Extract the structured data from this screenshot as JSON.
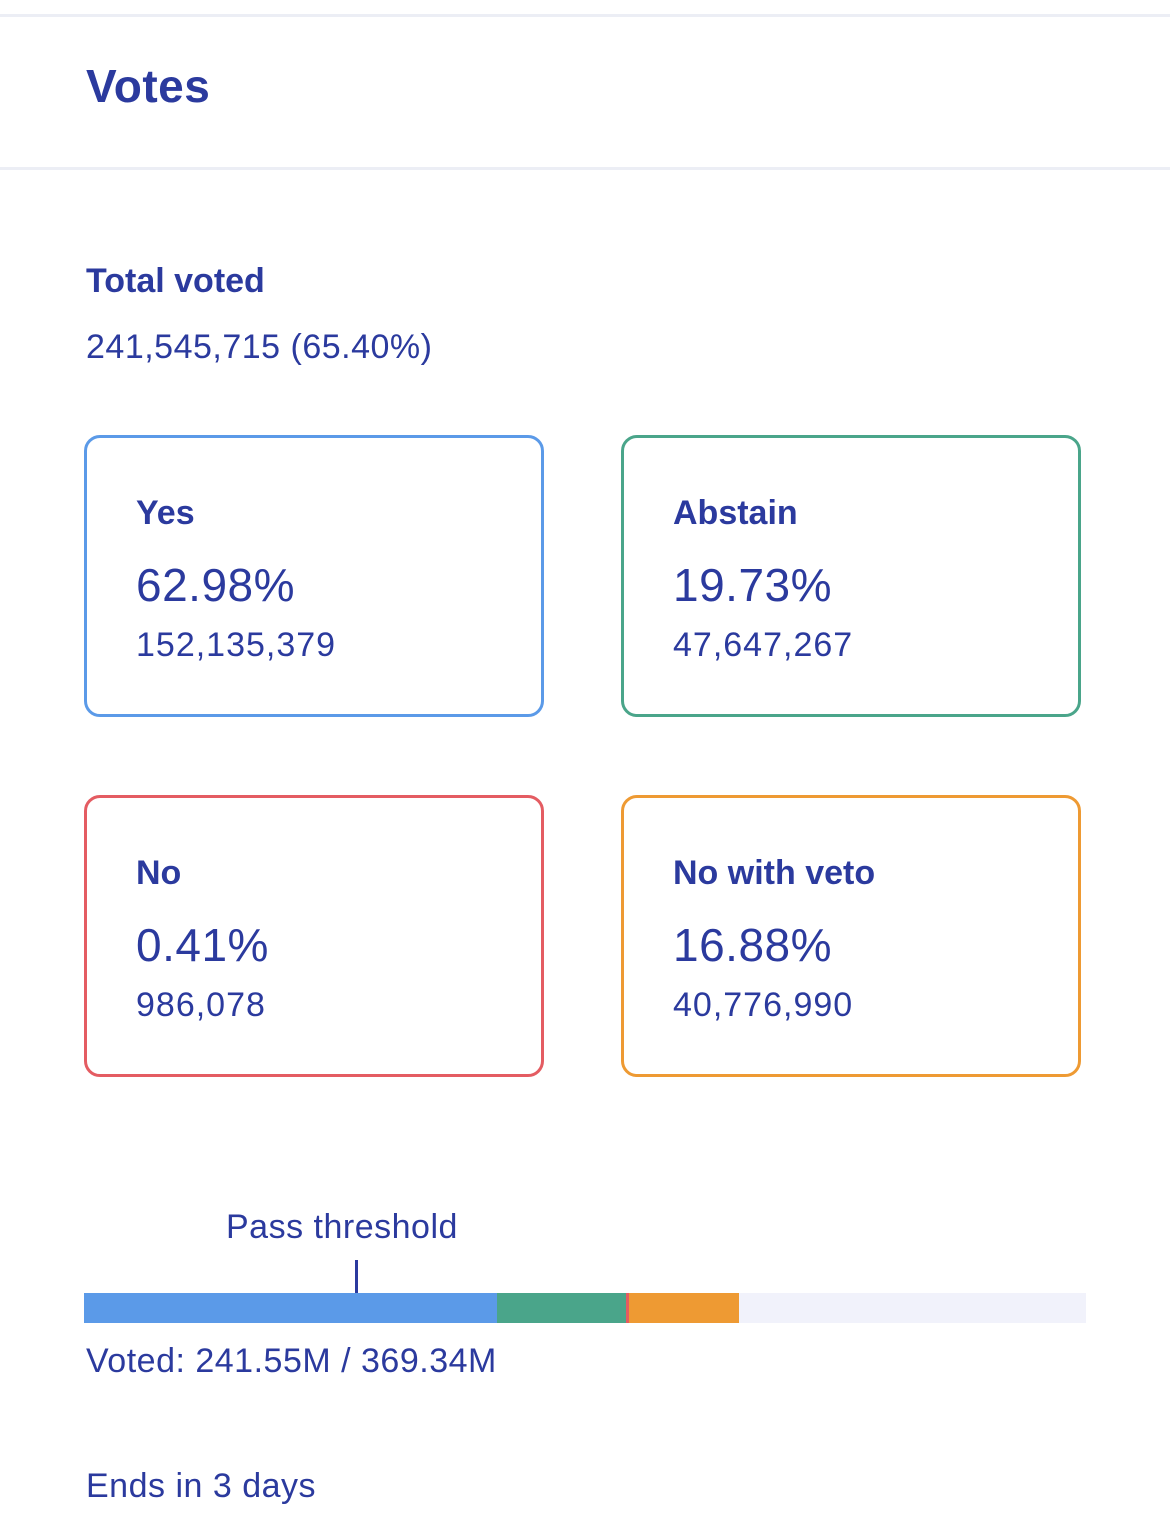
{
  "header": {
    "title": "Votes"
  },
  "summary": {
    "total_label": "Total voted",
    "total_value": "241,545,715 (65.40%)"
  },
  "options": [
    {
      "key": "yes",
      "label": "Yes",
      "percent": "62.98%",
      "count": "152,135,379",
      "color": "#5b9ae8",
      "share": 0.6298
    },
    {
      "key": "abstain",
      "label": "Abstain",
      "percent": "19.73%",
      "count": "47,647,267",
      "color": "#4aa58a",
      "share": 0.1973
    },
    {
      "key": "no",
      "label": "No",
      "percent": "0.41%",
      "count": "986,078",
      "color": "#e45c62",
      "share": 0.0041
    },
    {
      "key": "no_with_veto",
      "label": "No with veto",
      "percent": "16.88%",
      "count": "40,776,990",
      "color": "#ee9a33",
      "share": 0.1688
    }
  ],
  "progress": {
    "threshold_label": "Pass threshold",
    "turnout_fraction": 0.654,
    "track_color": "#f1f2fb",
    "voted_text": "Voted: 241.55M / 369.34M"
  },
  "footer": {
    "ends_text": "Ends in 3 days"
  }
}
